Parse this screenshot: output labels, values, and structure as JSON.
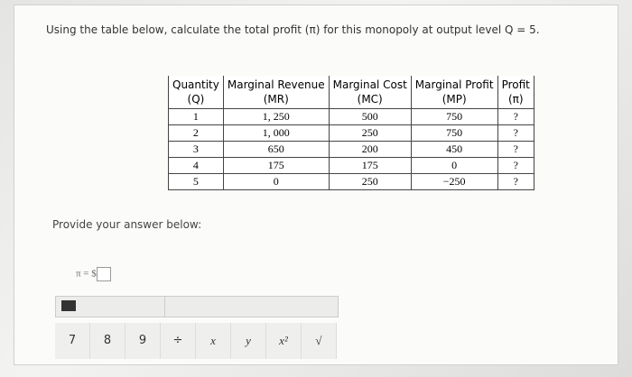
{
  "question": "Using the table below, calculate the total profit (π) for this monopoly at output level Q = 5.",
  "table": {
    "headers": [
      [
        "Quantity",
        "(Q)"
      ],
      [
        "Marginal Revenue",
        "(MR)"
      ],
      [
        "Marginal Cost",
        "(MC)"
      ],
      [
        "Marginal Profit",
        "(MP)"
      ],
      [
        "Profit",
        "(π)"
      ]
    ],
    "rows": [
      [
        "1",
        "1, 250",
        "500",
        "750",
        "?"
      ],
      [
        "2",
        "1, 000",
        "250",
        "750",
        "?"
      ],
      [
        "3",
        "650",
        "200",
        "450",
        "?"
      ],
      [
        "4",
        "175",
        "175",
        "0",
        "?"
      ],
      [
        "5",
        "0",
        "250",
        "−250",
        "?"
      ]
    ]
  },
  "answer": {
    "prompt": "Provide your answer below:",
    "label": "π = $"
  },
  "keypad": [
    "7",
    "8",
    "9",
    "÷",
    "x",
    "y",
    "x²",
    "√"
  ]
}
